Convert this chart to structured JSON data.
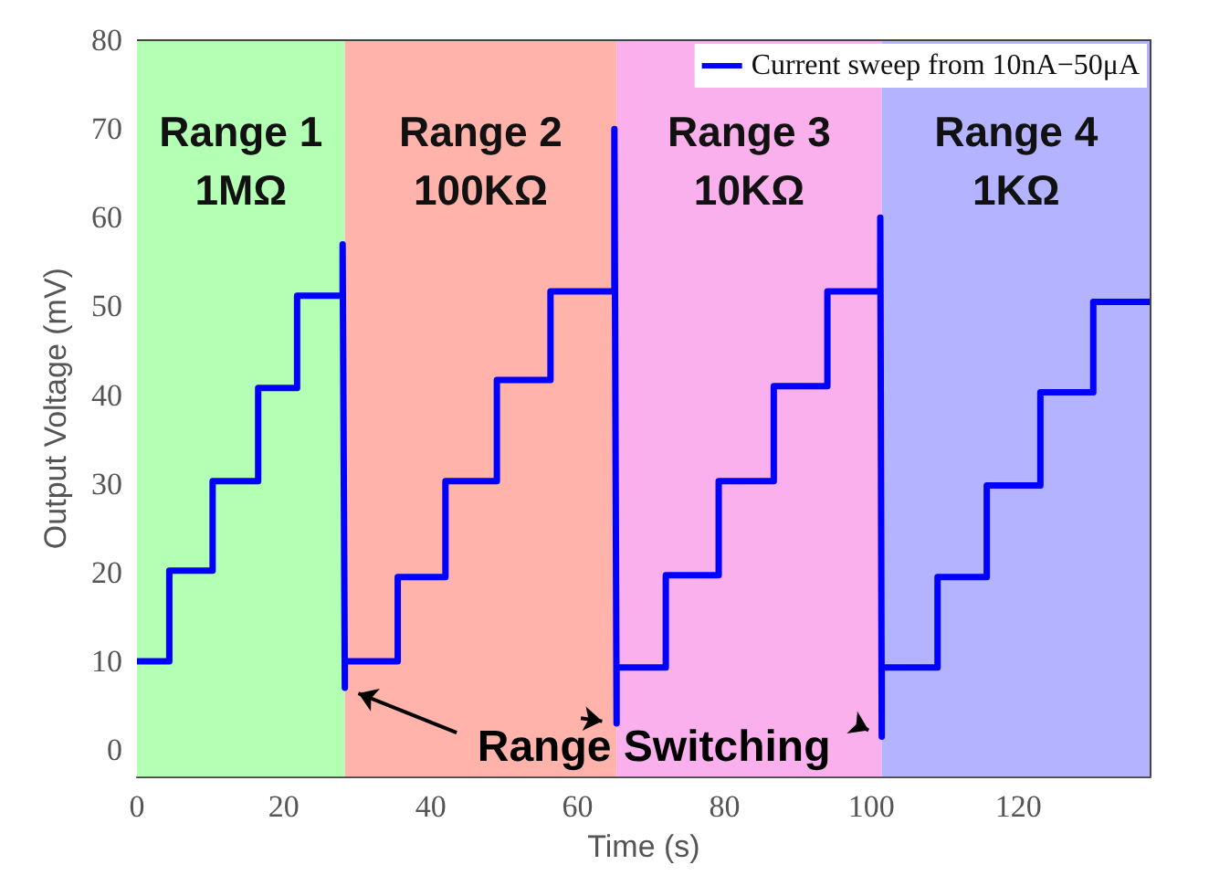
{
  "chart_data": {
    "type": "line",
    "xlabel": "Time (s)",
    "ylabel": "Output Voltage (mV)",
    "xlim": [
      0,
      138
    ],
    "xticks": [
      0,
      20,
      40,
      60,
      80,
      100,
      120
    ],
    "ylim": [
      -3,
      80
    ],
    "yticks": [
      0,
      10,
      20,
      30,
      40,
      50,
      60,
      70,
      80
    ],
    "grid": false,
    "legend": "top right",
    "marker": "none",
    "line_style": "solid",
    "x": [
      0,
      4.4,
      4.4,
      10.3,
      10.3,
      16.5,
      16.5,
      21.8,
      21.8,
      28,
      28,
      28.3,
      28.3,
      35.5,
      35.5,
      42,
      42,
      49,
      49,
      56.3,
      56.3,
      65,
      65,
      65.3,
      65.3,
      72,
      72,
      79.2,
      79.2,
      86.7,
      86.7,
      94,
      94,
      101.2,
      101.2,
      101.4,
      101.4,
      109,
      109,
      115.7,
      115.7,
      123,
      123,
      130.2,
      130.2,
      138
    ],
    "series": [
      {
        "name": "Current sweep from 10nA−50μA",
        "color": "#0000ff",
        "values": [
          10,
          10,
          20.2,
          20.2,
          30.3,
          30.3,
          40.8,
          40.8,
          51.2,
          51.2,
          57,
          7,
          10,
          10,
          19.5,
          19.5,
          30.3,
          30.3,
          41.7,
          41.7,
          51.7,
          51.7,
          70,
          3,
          9.3,
          9.3,
          19.7,
          19.7,
          30.3,
          30.3,
          41,
          41,
          51.7,
          51.7,
          60,
          1.5,
          9.3,
          9.3,
          19.5,
          19.5,
          29.8,
          29.8,
          40.3,
          40.3,
          50.5,
          50.5
        ]
      }
    ],
    "bands": [
      {
        "axis": "x",
        "from": 0,
        "to": 28.3,
        "label": "Range 1\n1MΩ",
        "color": "#b3ffb3"
      },
      {
        "axis": "x",
        "from": 28.3,
        "to": 65.3,
        "label": "Range 2\n100KΩ",
        "color": "#ffb3ab"
      },
      {
        "axis": "x",
        "from": 65.3,
        "to": 101.4,
        "label": "Range 3\n10KΩ",
        "color": "#f9b0ec"
      },
      {
        "axis": "x",
        "from": 101.4,
        "to": 138,
        "label": "Range 4\n1KΩ",
        "color": "#b3b3ff"
      }
    ],
    "annotations": [
      "Range Switching"
    ]
  }
}
